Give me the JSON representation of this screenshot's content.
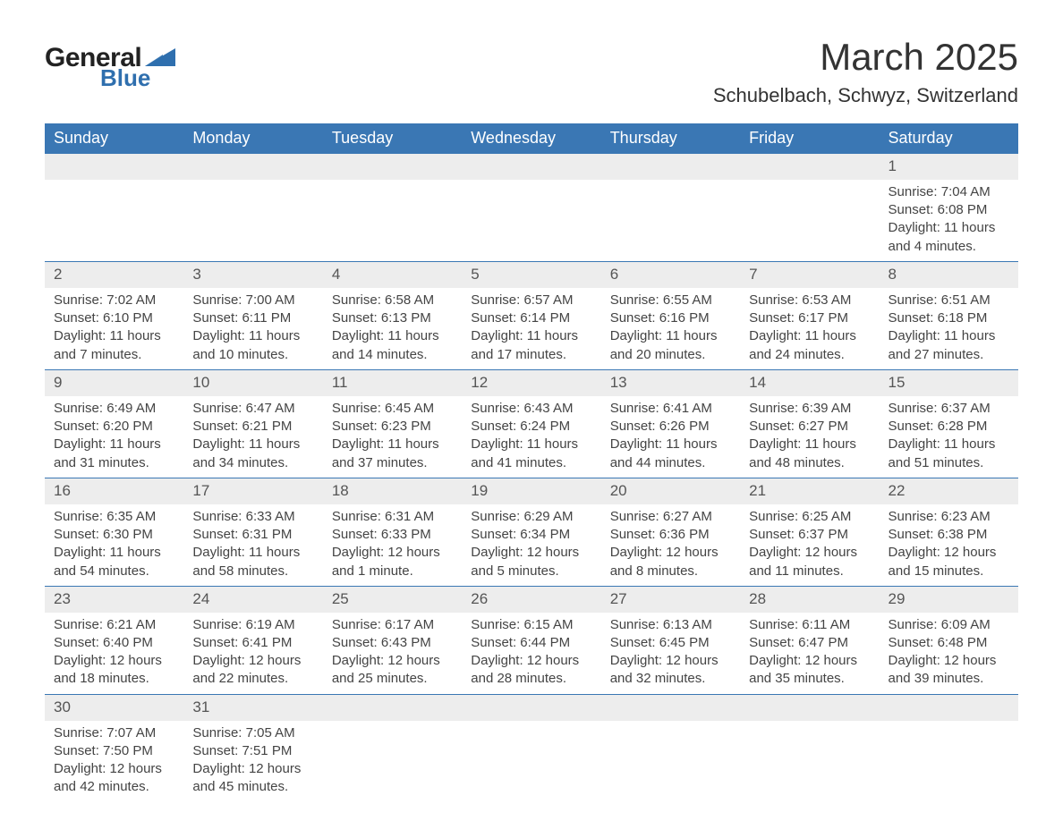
{
  "brand": {
    "word1": "General",
    "word2": "Blue",
    "tri_color": "#2f6fae"
  },
  "title": "March 2025",
  "location": "Schubelbach, Schwyz, Switzerland",
  "colors": {
    "header_bg": "#3a77b4",
    "header_text": "#ffffff",
    "daynum_bg": "#ededed",
    "border": "#3a77b4",
    "text": "#444444"
  },
  "typography": {
    "title_fontsize": 42,
    "location_fontsize": 22,
    "weekday_fontsize": 18,
    "cell_fontsize": 15
  },
  "weekdays": [
    "Sunday",
    "Monday",
    "Tuesday",
    "Wednesday",
    "Thursday",
    "Friday",
    "Saturday"
  ],
  "labels": {
    "sunrise": "Sunrise: ",
    "sunset": "Sunset: ",
    "daylight": "Daylight: "
  },
  "weeks": [
    [
      null,
      null,
      null,
      null,
      null,
      null,
      {
        "n": "1",
        "sunrise": "7:04 AM",
        "sunset": "6:08 PM",
        "daylight": "11 hours and 4 minutes."
      }
    ],
    [
      {
        "n": "2",
        "sunrise": "7:02 AM",
        "sunset": "6:10 PM",
        "daylight": "11 hours and 7 minutes."
      },
      {
        "n": "3",
        "sunrise": "7:00 AM",
        "sunset": "6:11 PM",
        "daylight": "11 hours and 10 minutes."
      },
      {
        "n": "4",
        "sunrise": "6:58 AM",
        "sunset": "6:13 PM",
        "daylight": "11 hours and 14 minutes."
      },
      {
        "n": "5",
        "sunrise": "6:57 AM",
        "sunset": "6:14 PM",
        "daylight": "11 hours and 17 minutes."
      },
      {
        "n": "6",
        "sunrise": "6:55 AM",
        "sunset": "6:16 PM",
        "daylight": "11 hours and 20 minutes."
      },
      {
        "n": "7",
        "sunrise": "6:53 AM",
        "sunset": "6:17 PM",
        "daylight": "11 hours and 24 minutes."
      },
      {
        "n": "8",
        "sunrise": "6:51 AM",
        "sunset": "6:18 PM",
        "daylight": "11 hours and 27 minutes."
      }
    ],
    [
      {
        "n": "9",
        "sunrise": "6:49 AM",
        "sunset": "6:20 PM",
        "daylight": "11 hours and 31 minutes."
      },
      {
        "n": "10",
        "sunrise": "6:47 AM",
        "sunset": "6:21 PM",
        "daylight": "11 hours and 34 minutes."
      },
      {
        "n": "11",
        "sunrise": "6:45 AM",
        "sunset": "6:23 PM",
        "daylight": "11 hours and 37 minutes."
      },
      {
        "n": "12",
        "sunrise": "6:43 AM",
        "sunset": "6:24 PM",
        "daylight": "11 hours and 41 minutes."
      },
      {
        "n": "13",
        "sunrise": "6:41 AM",
        "sunset": "6:26 PM",
        "daylight": "11 hours and 44 minutes."
      },
      {
        "n": "14",
        "sunrise": "6:39 AM",
        "sunset": "6:27 PM",
        "daylight": "11 hours and 48 minutes."
      },
      {
        "n": "15",
        "sunrise": "6:37 AM",
        "sunset": "6:28 PM",
        "daylight": "11 hours and 51 minutes."
      }
    ],
    [
      {
        "n": "16",
        "sunrise": "6:35 AM",
        "sunset": "6:30 PM",
        "daylight": "11 hours and 54 minutes."
      },
      {
        "n": "17",
        "sunrise": "6:33 AM",
        "sunset": "6:31 PM",
        "daylight": "11 hours and 58 minutes."
      },
      {
        "n": "18",
        "sunrise": "6:31 AM",
        "sunset": "6:33 PM",
        "daylight": "12 hours and 1 minute."
      },
      {
        "n": "19",
        "sunrise": "6:29 AM",
        "sunset": "6:34 PM",
        "daylight": "12 hours and 5 minutes."
      },
      {
        "n": "20",
        "sunrise": "6:27 AM",
        "sunset": "6:36 PM",
        "daylight": "12 hours and 8 minutes."
      },
      {
        "n": "21",
        "sunrise": "6:25 AM",
        "sunset": "6:37 PM",
        "daylight": "12 hours and 11 minutes."
      },
      {
        "n": "22",
        "sunrise": "6:23 AM",
        "sunset": "6:38 PM",
        "daylight": "12 hours and 15 minutes."
      }
    ],
    [
      {
        "n": "23",
        "sunrise": "6:21 AM",
        "sunset": "6:40 PM",
        "daylight": "12 hours and 18 minutes."
      },
      {
        "n": "24",
        "sunrise": "6:19 AM",
        "sunset": "6:41 PM",
        "daylight": "12 hours and 22 minutes."
      },
      {
        "n": "25",
        "sunrise": "6:17 AM",
        "sunset": "6:43 PM",
        "daylight": "12 hours and 25 minutes."
      },
      {
        "n": "26",
        "sunrise": "6:15 AM",
        "sunset": "6:44 PM",
        "daylight": "12 hours and 28 minutes."
      },
      {
        "n": "27",
        "sunrise": "6:13 AM",
        "sunset": "6:45 PM",
        "daylight": "12 hours and 32 minutes."
      },
      {
        "n": "28",
        "sunrise": "6:11 AM",
        "sunset": "6:47 PM",
        "daylight": "12 hours and 35 minutes."
      },
      {
        "n": "29",
        "sunrise": "6:09 AM",
        "sunset": "6:48 PM",
        "daylight": "12 hours and 39 minutes."
      }
    ],
    [
      {
        "n": "30",
        "sunrise": "7:07 AM",
        "sunset": "7:50 PM",
        "daylight": "12 hours and 42 minutes."
      },
      {
        "n": "31",
        "sunrise": "7:05 AM",
        "sunset": "7:51 PM",
        "daylight": "12 hours and 45 minutes."
      },
      null,
      null,
      null,
      null,
      null
    ]
  ]
}
